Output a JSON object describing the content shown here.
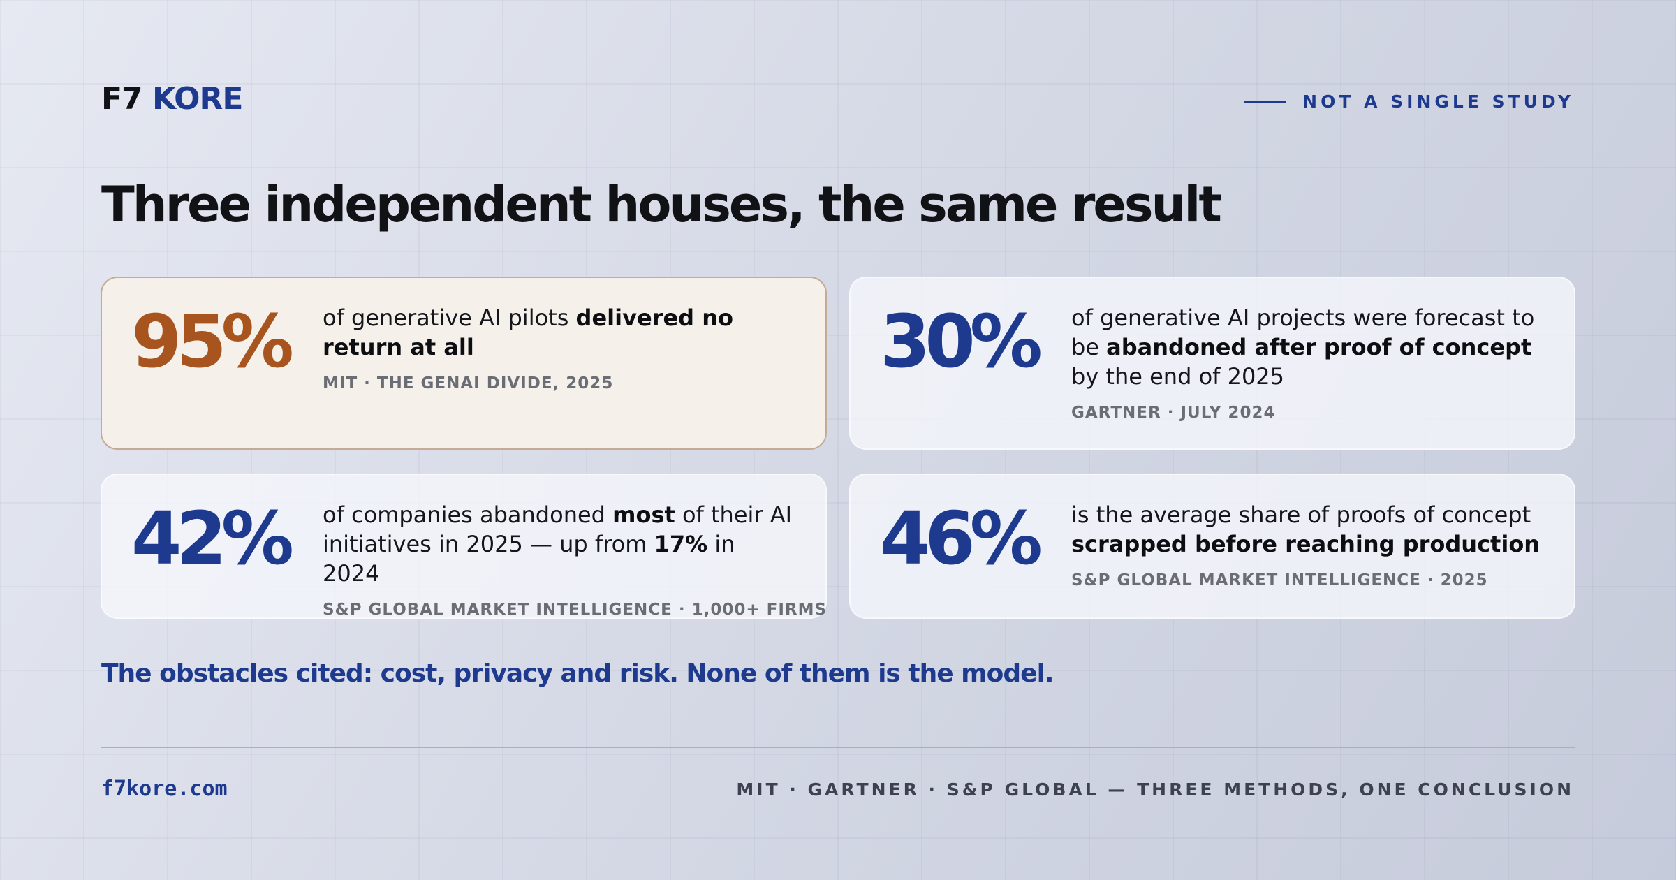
{
  "brand": {
    "part1": "F7",
    "part2": "KORE"
  },
  "kicker": "NOT A SINGLE STUDY",
  "headline": "Three independent houses, the same result",
  "cards": [
    {
      "stat": "95%",
      "highlighted": true,
      "text": [
        {
          "t": "of generative AI pilots ",
          "b": false
        },
        {
          "t": "delivered no return at all",
          "b": true
        }
      ],
      "source": "MIT · THE GENAI DIVIDE, 2025"
    },
    {
      "stat": "30%",
      "highlighted": false,
      "text": [
        {
          "t": "of generative AI projects were forecast to be ",
          "b": false
        },
        {
          "t": "abandoned after proof of concept",
          "b": true
        },
        {
          "t": " by the end of 2025",
          "b": false
        }
      ],
      "source": "GARTNER · JULY 2024"
    },
    {
      "stat": "42%",
      "highlighted": false,
      "text": [
        {
          "t": "of companies abandoned ",
          "b": false
        },
        {
          "t": "most",
          "b": true
        },
        {
          "t": " of their AI initiatives in 2025 — up from ",
          "b": false
        },
        {
          "t": "17%",
          "b": true
        },
        {
          "t": " in 2024",
          "b": false
        }
      ],
      "source": "S&P GLOBAL MARKET INTELLIGENCE · 1,000+ FIRMS"
    },
    {
      "stat": "46%",
      "highlighted": false,
      "text": [
        {
          "t": "is the average share of proofs of concept ",
          "b": false
        },
        {
          "t": "scrapped before reaching production",
          "b": true
        }
      ],
      "source": "S&P GLOBAL MARKET INTELLIGENCE · 2025"
    }
  ],
  "note": "The obstacles cited: cost, privacy and risk. None of them is the model.",
  "footer": {
    "url": "f7kore.com",
    "caption": "MIT · GARTNER · S&P GLOBAL — THREE METHODS, ONE CONCLUSION"
  },
  "colors": {
    "accent": "#1e3a8f",
    "highlight_stat": "#a8541f",
    "highlight_card_bg": "#f5f1ea"
  }
}
